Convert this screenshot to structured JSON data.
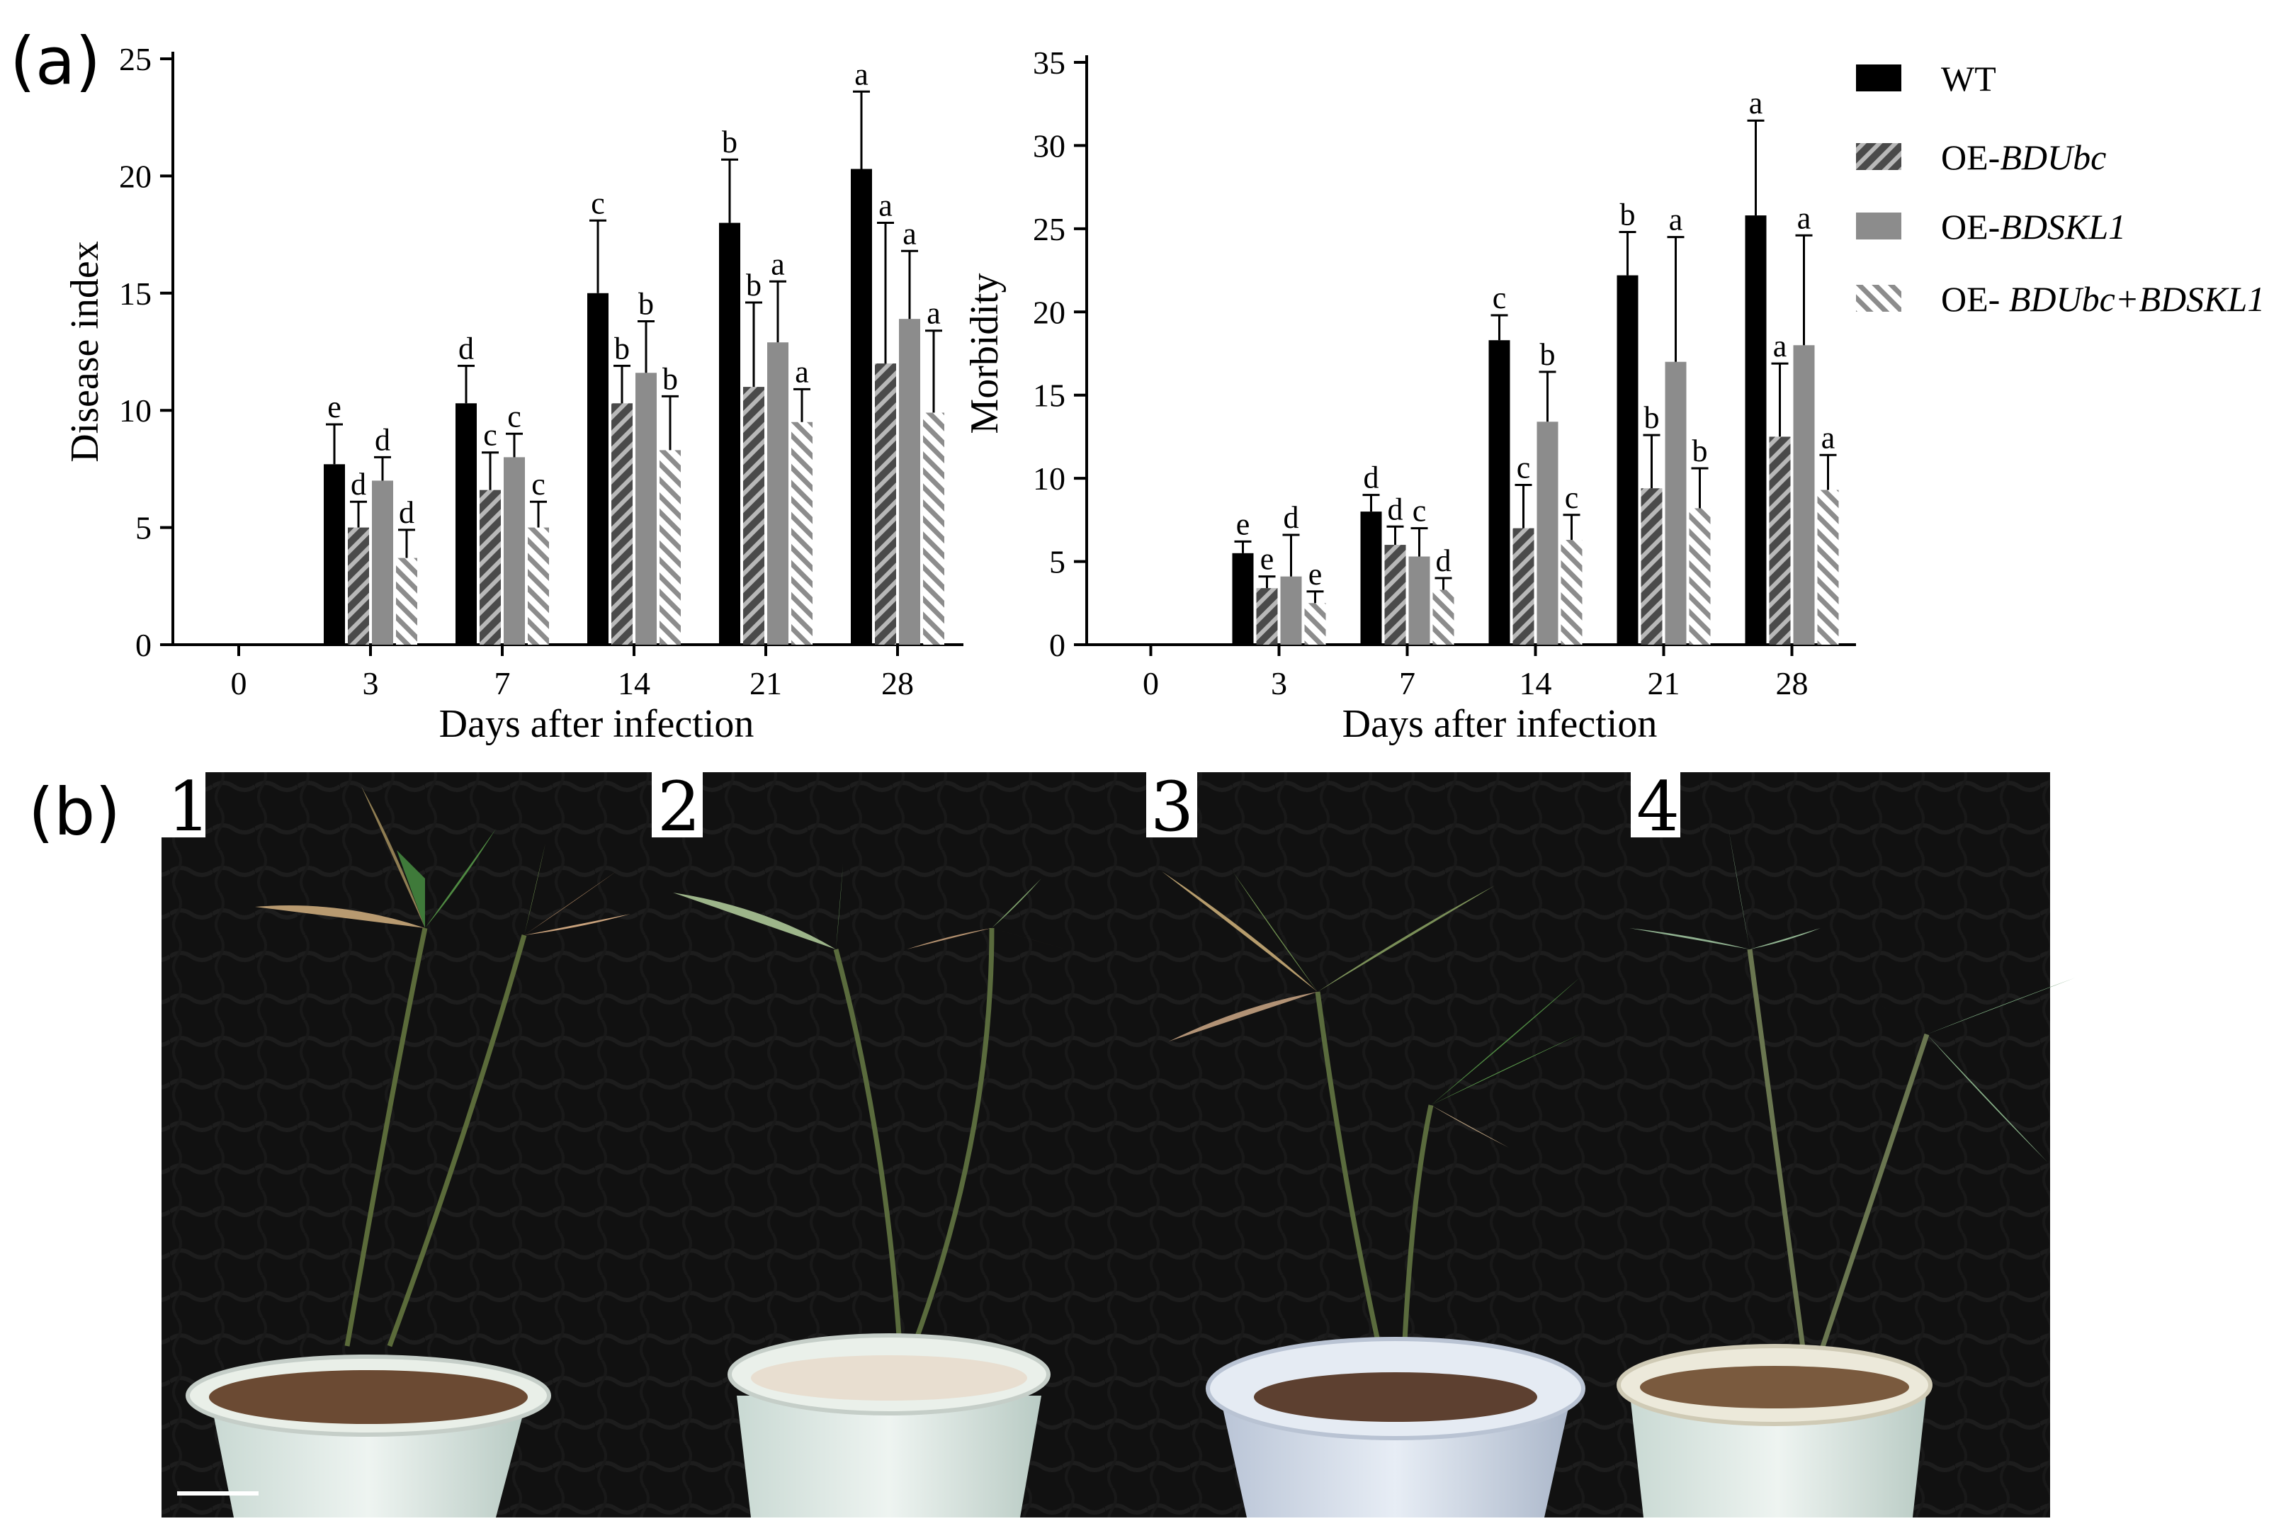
{
  "panel_labels": {
    "a": "(a)",
    "b": "(b)"
  },
  "legend": {
    "items": [
      {
        "prefix": "WT",
        "gene": "",
        "style": "solid-black"
      },
      {
        "prefix": "OE-",
        "gene": "BDUbc",
        "style": "dark-hatch"
      },
      {
        "prefix": "OE-",
        "gene": "BDSKL1",
        "style": "solid-gray"
      },
      {
        "prefix": "OE- ",
        "gene": "BDUbc+BDSKL1",
        "style": "light-hatch"
      }
    ]
  },
  "colors": {
    "wt": "#000000",
    "oe_bdubc": "#555555",
    "oe_bdskl1": "#8c8c8c",
    "oe_combo": "#8c8c8c"
  },
  "chart_data": [
    {
      "type": "bar",
      "title": "",
      "xlabel": "Days after infection",
      "ylabel": "Disease index",
      "categories": [
        "0",
        "3",
        "7",
        "14",
        "21",
        "28"
      ],
      "ylim": [
        0,
        25
      ],
      "yticks": [
        0,
        5,
        10,
        15,
        20,
        25
      ],
      "series": [
        {
          "name": "WT",
          "values": [
            0,
            7.7,
            10.3,
            15.0,
            18.0,
            20.3
          ],
          "err": [
            0,
            1.7,
            1.6,
            3.1,
            2.7,
            3.3
          ],
          "sig": [
            "",
            "e",
            "d",
            "c",
            "b",
            "a"
          ]
        },
        {
          "name": "OE-BDUbc",
          "values": [
            0,
            5.0,
            6.6,
            10.3,
            11.0,
            12.0
          ],
          "err": [
            0,
            1.1,
            1.6,
            1.6,
            3.6,
            6.0
          ],
          "sig": [
            "",
            "d",
            "c",
            "b",
            "b",
            "a"
          ]
        },
        {
          "name": "OE-BDSKL1",
          "values": [
            0,
            7.0,
            8.0,
            11.6,
            12.9,
            13.9
          ],
          "err": [
            0,
            1.0,
            1.0,
            2.2,
            2.6,
            2.9
          ],
          "sig": [
            "",
            "d",
            "c",
            "b",
            "a",
            "a"
          ]
        },
        {
          "name": "OE- BDUbc+BDSKL1",
          "values": [
            0,
            3.7,
            5.0,
            8.3,
            9.5,
            9.9
          ],
          "err": [
            0,
            1.2,
            1.1,
            2.3,
            1.4,
            3.5
          ],
          "sig": [
            "",
            "d",
            "c",
            "b",
            "a",
            "a"
          ]
        }
      ]
    },
    {
      "type": "bar",
      "title": "",
      "xlabel": "Days after infection",
      "ylabel": "Morbidity",
      "categories": [
        "0",
        "3",
        "7",
        "14",
        "21",
        "28"
      ],
      "ylim": [
        0,
        35
      ],
      "yticks": [
        0,
        5,
        10,
        15,
        20,
        25,
        30,
        35
      ],
      "series": [
        {
          "name": "WT",
          "values": [
            0,
            5.5,
            8.0,
            18.3,
            22.2,
            25.8
          ],
          "err": [
            0,
            0.7,
            1.0,
            1.5,
            2.6,
            5.7
          ],
          "sig": [
            "",
            "e",
            "d",
            "c",
            "b",
            "a"
          ]
        },
        {
          "name": "OE-BDUbc",
          "values": [
            0,
            3.4,
            6.0,
            7.0,
            9.4,
            12.5
          ],
          "err": [
            0,
            0.7,
            1.1,
            2.6,
            3.2,
            4.4
          ],
          "sig": [
            "",
            "e",
            "d",
            "c",
            "b",
            "a"
          ]
        },
        {
          "name": "OE-BDSKL1",
          "values": [
            0,
            4.1,
            5.3,
            13.4,
            17.0,
            18.0
          ],
          "err": [
            0,
            2.5,
            1.7,
            3.0,
            7.5,
            6.6
          ],
          "sig": [
            "",
            "d",
            "c",
            "b",
            "a",
            "a"
          ]
        },
        {
          "name": "OE- BDUbc+BDSKL1",
          "values": [
            0,
            2.5,
            3.3,
            6.3,
            8.2,
            9.3
          ],
          "err": [
            0,
            0.7,
            0.7,
            1.5,
            2.4,
            2.1
          ],
          "sig": [
            "",
            "e",
            "d",
            "c",
            "b",
            "a"
          ]
        }
      ]
    }
  ],
  "photos": [
    {
      "number": "1"
    },
    {
      "number": "2"
    },
    {
      "number": "3"
    },
    {
      "number": "4"
    }
  ]
}
